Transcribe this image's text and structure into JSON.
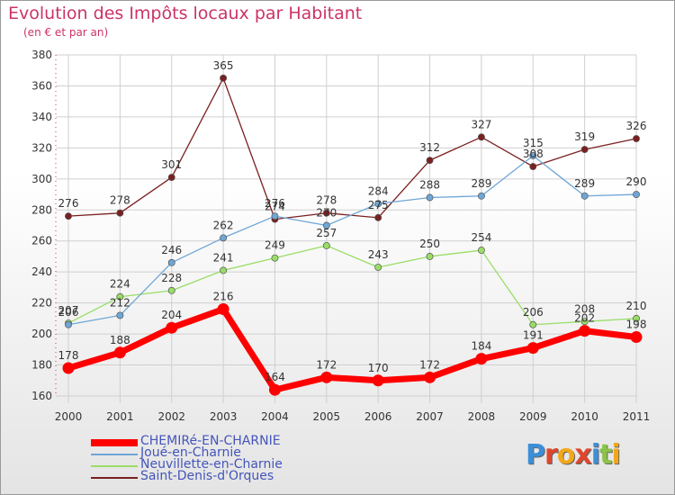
{
  "title": "Evolution des Impôts locaux par Habitant",
  "subtitle": "(en € et par an)",
  "logo_text": "Proxiti",
  "colors": {
    "title": "#cc3366",
    "legend_text": "#4455bb",
    "grid": "#cfcfcf",
    "axis_text": "#333333"
  },
  "chart_data": {
    "type": "line",
    "title": "Evolution des Impôts locaux par Habitant",
    "subtitle": "(en € et par an)",
    "x": [
      "2000",
      "2001",
      "2002",
      "2003",
      "2004",
      "2005",
      "2006",
      "2007",
      "2008",
      "2009",
      "2010",
      "2011"
    ],
    "ylim": [
      160,
      380
    ],
    "yticks": [
      160,
      180,
      200,
      220,
      240,
      260,
      280,
      300,
      320,
      340,
      360,
      380
    ],
    "grid": true,
    "legend_position": "bottom-left",
    "series": [
      {
        "name": "CHEMIRé-EN-CHARNIE",
        "color": "#ff0000",
        "emphasis": true,
        "values": [
          178,
          188,
          204,
          216,
          164,
          172,
          170,
          172,
          184,
          191,
          202,
          198
        ]
      },
      {
        "name": "Joué-en-Charnie",
        "color": "#6fa6d6",
        "emphasis": false,
        "values": [
          206,
          212,
          246,
          262,
          276,
          270,
          284,
          288,
          289,
          315,
          289,
          290
        ]
      },
      {
        "name": "Neuvillette-en-Charnie",
        "color": "#99dd66",
        "emphasis": false,
        "values": [
          207,
          224,
          228,
          241,
          249,
          257,
          243,
          250,
          254,
          206,
          208,
          210
        ]
      },
      {
        "name": "Saint-Denis-d'Orques",
        "color": "#7a2020",
        "emphasis": false,
        "values": [
          276,
          278,
          301,
          365,
          274,
          278,
          275,
          312,
          327,
          308,
          319,
          326
        ]
      }
    ]
  }
}
